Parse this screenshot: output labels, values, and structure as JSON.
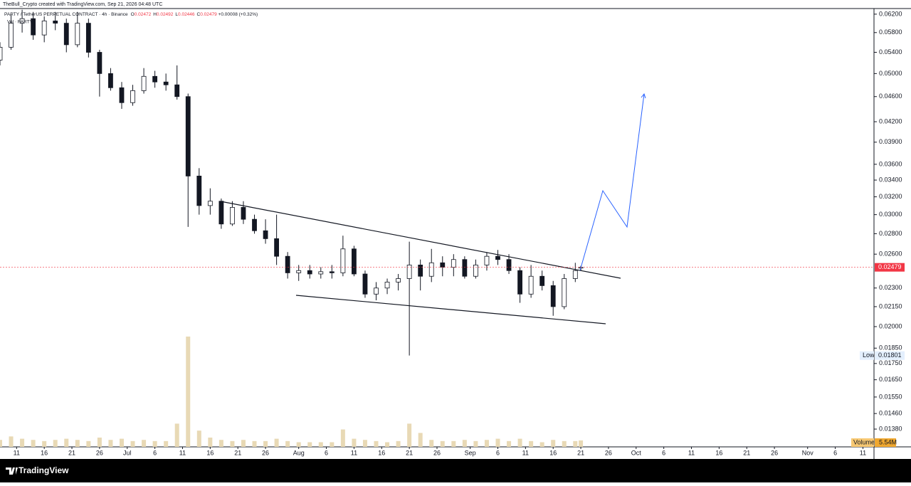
{
  "header": "TheBull_Crypto created with TradingView.com, Sep 21, 2026 04:48 UTC",
  "footer": "TradingView",
  "chart_data": {
    "type": "candlestick",
    "title": "PARTY / TetherUS PERPETUAL CONTRACT · 4h · Binance",
    "ohlc_letters": [
      "O",
      "H",
      "L",
      "C"
    ],
    "change_label": "+0.00008 (+0.32%)",
    "volume_title": "Vol · PARTY",
    "low_label": "Low",
    "log_scale": true,
    "x": [
      "2026-06-08",
      "2026-06-10",
      "2026-06-12",
      "2026-06-14",
      "2026-06-16",
      "2026-06-18",
      "2026-06-20",
      "2026-06-22",
      "2026-06-24",
      "2026-06-26",
      "2026-06-28",
      "2026-06-30",
      "2026-07-02",
      "2026-07-04",
      "2026-07-06",
      "2026-07-08",
      "2026-07-10",
      "2026-07-12",
      "2026-07-14",
      "2026-07-16",
      "2026-07-18",
      "2026-07-20",
      "2026-07-22",
      "2026-07-24",
      "2026-07-26",
      "2026-07-28",
      "2026-07-30",
      "2026-08-01",
      "2026-08-03",
      "2026-08-05",
      "2026-08-07",
      "2026-08-09",
      "2026-08-11",
      "2026-08-13",
      "2026-08-15",
      "2026-08-17",
      "2026-08-19",
      "2026-08-21",
      "2026-08-23",
      "2026-08-25",
      "2026-08-27",
      "2026-08-29",
      "2026-08-31",
      "2026-09-02",
      "2026-09-04",
      "2026-09-06",
      "2026-09-08",
      "2026-09-10",
      "2026-09-12",
      "2026-09-14",
      "2026-09-16",
      "2026-09-18",
      "2026-09-20",
      "2026-09-21"
    ],
    "open": [
      0.0525,
      0.055,
      0.06,
      0.061,
      0.0575,
      0.0605,
      0.06,
      0.0555,
      0.06,
      0.054,
      0.05,
      0.0475,
      0.045,
      0.047,
      0.0495,
      0.0485,
      0.048,
      0.046,
      0.0345,
      0.031,
      0.0315,
      0.029,
      0.0308,
      0.0295,
      0.0283,
      0.0275,
      0.0258,
      0.0243,
      0.0245,
      0.0242,
      0.0244,
      0.0243,
      0.0265,
      0.0242,
      0.0225,
      0.023,
      0.0235,
      0.0238,
      0.025,
      0.024,
      0.0252,
      0.0248,
      0.0255,
      0.024,
      0.025,
      0.0258,
      0.0255,
      0.0245,
      0.0225,
      0.024,
      0.0232,
      0.0215,
      0.0238,
      0.02472
    ],
    "high": [
      0.056,
      0.062,
      0.063,
      0.0625,
      0.0615,
      0.0625,
      0.061,
      0.0625,
      0.061,
      0.0545,
      0.051,
      0.0485,
      0.048,
      0.051,
      0.0505,
      0.05,
      0.0515,
      0.0465,
      0.0355,
      0.033,
      0.0318,
      0.0315,
      0.0315,
      0.03,
      0.0295,
      0.03,
      0.0262,
      0.025,
      0.025,
      0.0248,
      0.025,
      0.0278,
      0.0268,
      0.0245,
      0.0235,
      0.0238,
      0.0242,
      0.0272,
      0.0255,
      0.0265,
      0.0258,
      0.026,
      0.0258,
      0.0255,
      0.0262,
      0.0264,
      0.026,
      0.0248,
      0.025,
      0.0245,
      0.0236,
      0.0242,
      0.0252,
      0.02492
    ],
    "low": [
      0.0515,
      0.0545,
      0.058,
      0.0565,
      0.056,
      0.0585,
      0.054,
      0.055,
      0.053,
      0.046,
      0.047,
      0.044,
      0.0445,
      0.0465,
      0.0475,
      0.047,
      0.0455,
      0.0287,
      0.03,
      0.03,
      0.0285,
      0.0288,
      0.029,
      0.028,
      0.027,
      0.025,
      0.0238,
      0.0236,
      0.0238,
      0.0238,
      0.0238,
      0.024,
      0.024,
      0.0222,
      0.022,
      0.0225,
      0.0228,
      0.01801,
      0.0228,
      0.0235,
      0.024,
      0.024,
      0.0238,
      0.0238,
      0.0245,
      0.025,
      0.0242,
      0.0218,
      0.0222,
      0.0228,
      0.0208,
      0.0213,
      0.0235,
      0.02446
    ],
    "close": [
      0.055,
      0.06,
      0.061,
      0.0575,
      0.0605,
      0.06,
      0.0555,
      0.06,
      0.054,
      0.05,
      0.0475,
      0.045,
      0.047,
      0.0495,
      0.0485,
      0.048,
      0.046,
      0.0345,
      0.031,
      0.0315,
      0.029,
      0.0308,
      0.0295,
      0.0283,
      0.0275,
      0.0258,
      0.0243,
      0.0245,
      0.0242,
      0.0244,
      0.0243,
      0.0265,
      0.0242,
      0.0225,
      0.023,
      0.0235,
      0.0238,
      0.025,
      0.024,
      0.0252,
      0.0248,
      0.0255,
      0.024,
      0.025,
      0.0258,
      0.0255,
      0.0245,
      0.0225,
      0.024,
      0.0232,
      0.0215,
      0.0238,
      0.0245,
      0.02479
    ],
    "up_color": "#ffffff",
    "down_color": "#131722",
    "last_price_color": "#f23645",
    "volume": {
      "name": "Volume",
      "color": "#e8d9b5",
      "value_label": "5.54M",
      "values": [
        6,
        9,
        7,
        6,
        5,
        6,
        7,
        6,
        5,
        8,
        6,
        7,
        5,
        6,
        5,
        5,
        20,
        95,
        14,
        8,
        6,
        5,
        6,
        5,
        5,
        7,
        5,
        4,
        4,
        4,
        4,
        15,
        7,
        6,
        5,
        4,
        5,
        20,
        12,
        6,
        5,
        5,
        6,
        5,
        6,
        7,
        5,
        7,
        5,
        4,
        6,
        5,
        5,
        5.54
      ]
    },
    "xlim": [
      "2026-06-08",
      "2026-11-13"
    ],
    "xticks": [
      {
        "value": "2026-06-11",
        "label": "11"
      },
      {
        "value": "2026-06-16",
        "label": "16"
      },
      {
        "value": "2026-06-21",
        "label": "21"
      },
      {
        "value": "2026-06-26",
        "label": "26"
      },
      {
        "value": "2026-07-01",
        "label": "Jul"
      },
      {
        "value": "2026-07-06",
        "label": "6"
      },
      {
        "value": "2026-07-11",
        "label": "11"
      },
      {
        "value": "2026-07-16",
        "label": "16"
      },
      {
        "value": "2026-07-21",
        "label": "21"
      },
      {
        "value": "2026-07-26",
        "label": "26"
      },
      {
        "value": "2026-08-01",
        "label": "Aug"
      },
      {
        "value": "2026-08-06",
        "label": "6"
      },
      {
        "value": "2026-08-11",
        "label": "11"
      },
      {
        "value": "2026-08-16",
        "label": "16"
      },
      {
        "value": "2026-08-21",
        "label": "21"
      },
      {
        "value": "2026-08-26",
        "label": "26"
      },
      {
        "value": "2026-09-01",
        "label": "Sep"
      },
      {
        "value": "2026-09-06",
        "label": "6"
      },
      {
        "value": "2026-09-11",
        "label": "11"
      },
      {
        "value": "2026-09-16",
        "label": "16"
      },
      {
        "value": "2026-09-21",
        "label": "21"
      },
      {
        "value": "2026-09-26",
        "label": "26"
      },
      {
        "value": "2026-10-01",
        "label": "Oct"
      },
      {
        "value": "2026-10-06",
        "label": "6"
      },
      {
        "value": "2026-10-11",
        "label": "11"
      },
      {
        "value": "2026-10-16",
        "label": "16"
      },
      {
        "value": "2026-10-21",
        "label": "21"
      },
      {
        "value": "2026-10-26",
        "label": "26"
      },
      {
        "value": "2026-11-01",
        "label": "Nov"
      },
      {
        "value": "2026-11-06",
        "label": "6"
      },
      {
        "value": "2026-11-11",
        "label": "11"
      }
    ],
    "ylim": [
      0.01294,
      0.0636
    ],
    "yticks": [
      {
        "value": 0.062,
        "label": "0.06200"
      },
      {
        "value": 0.058,
        "label": "0.05800"
      },
      {
        "value": 0.054,
        "label": "0.05400"
      },
      {
        "value": 0.05,
        "label": "0.05000"
      },
      {
        "value": 0.046,
        "label": "0.04600"
      },
      {
        "value": 0.042,
        "label": "0.04200"
      },
      {
        "value": 0.039,
        "label": "0.03900"
      },
      {
        "value": 0.036,
        "label": "0.03600"
      },
      {
        "value": 0.034,
        "label": "0.03400"
      },
      {
        "value": 0.032,
        "label": "0.03200"
      },
      {
        "value": 0.03,
        "label": "0.03000"
      },
      {
        "value": 0.028,
        "label": "0.02800"
      },
      {
        "value": 0.026,
        "label": "0.02600"
      },
      {
        "value": 0.023,
        "label": "0.02300"
      },
      {
        "value": 0.0215,
        "label": "0.02150"
      },
      {
        "value": 0.02,
        "label": "0.02000"
      },
      {
        "value": 0.0185,
        "label": "0.01850"
      },
      {
        "value": 0.0175,
        "label": "0.01750"
      },
      {
        "value": 0.0165,
        "label": "0.01650"
      },
      {
        "value": 0.0155,
        "label": "0.01550"
      },
      {
        "value": 0.0146,
        "label": "0.01460"
      },
      {
        "value": 0.0138,
        "label": "0.01380"
      }
    ]
  }
}
